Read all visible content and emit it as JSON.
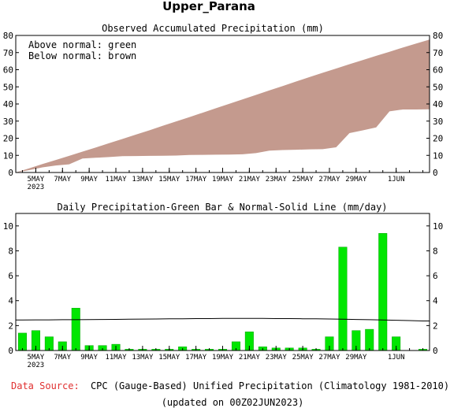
{
  "title": "Upper_Parana",
  "footer": {
    "source_label": "Data Source:",
    "source_text": "CPC (Gauge-Based) Unified Precipitation (Climatology 1981-2010)",
    "updated": "(updated on 00Z02JUN2023)"
  },
  "colors": {
    "above": "#00cc00",
    "below": "#c49a8e",
    "bar": "#00e600",
    "source_label": "#e03030"
  },
  "x_ticks": [
    {
      "day": 2,
      "label": "5MAY",
      "sub": "2023"
    },
    {
      "day": 4,
      "label": "7MAY"
    },
    {
      "day": 6,
      "label": "9MAY"
    },
    {
      "day": 8,
      "label": "11MAY"
    },
    {
      "day": 10,
      "label": "13MAY"
    },
    {
      "day": 12,
      "label": "15MAY"
    },
    {
      "day": 14,
      "label": "17MAY"
    },
    {
      "day": 16,
      "label": "19MAY"
    },
    {
      "day": 18,
      "label": "21MAY"
    },
    {
      "day": 20,
      "label": "23MAY"
    },
    {
      "day": 22,
      "label": "25MAY"
    },
    {
      "day": 24,
      "label": "27MAY"
    },
    {
      "day": 26,
      "label": "29MAY"
    },
    {
      "day": 29,
      "label": "1JUN"
    }
  ],
  "chart_data": [
    {
      "type": "area",
      "title": "Observed Accumulated Precipitation (mm)",
      "legend": [
        "Above normal: green",
        "Below normal: brown"
      ],
      "legend_position": "top-left",
      "x": [
        1,
        2,
        3,
        4,
        5,
        6,
        7,
        8,
        9,
        10,
        11,
        12,
        13,
        14,
        15,
        16,
        17,
        18,
        19,
        20,
        21,
        22,
        23,
        24,
        25,
        26,
        27,
        28,
        29,
        30,
        31
      ],
      "series": [
        {
          "name": "Observed",
          "values": [
            1.4,
            3.0,
            4.1,
            4.8,
            8.2,
            8.6,
            9.0,
            9.5,
            9.6,
            9.7,
            9.8,
            9.9,
            10.2,
            10.3,
            10.4,
            10.5,
            10.6,
            11.3,
            12.8,
            13.1,
            13.3,
            13.5,
            13.6,
            14.7,
            23.0,
            24.6,
            26.3,
            35.7,
            36.8,
            36.8,
            36.9
          ]
        },
        {
          "name": "Normal",
          "values": [
            2.4,
            4.9,
            7.3,
            9.7,
            12.2,
            14.6,
            17.1,
            19.6,
            22.1,
            24.6,
            27.2,
            29.8,
            32.3,
            34.9,
            37.5,
            40.1,
            42.7,
            45.3,
            47.9,
            50.5,
            53.1,
            55.7,
            58.2,
            60.7,
            63.2,
            65.6,
            68.1,
            70.5,
            72.9,
            75.3,
            77.6
          ]
        }
      ],
      "ylim": [
        0,
        80
      ],
      "yticks": [
        0,
        10,
        20,
        30,
        40,
        50,
        60,
        70,
        80
      ]
    },
    {
      "type": "bar",
      "title": "Daily Precipitation-Green Bar & Normal-Solid Line (mm/day)",
      "x": [
        1,
        2,
        3,
        4,
        5,
        6,
        7,
        8,
        9,
        10,
        11,
        12,
        13,
        14,
        15,
        16,
        17,
        18,
        19,
        20,
        21,
        22,
        23,
        24,
        25,
        26,
        27,
        28,
        29,
        30,
        31
      ],
      "series": [
        {
          "name": "Daily Precipitation",
          "values": [
            1.4,
            1.6,
            1.1,
            0.7,
            3.4,
            0.4,
            0.4,
            0.5,
            0.1,
            0.1,
            0.1,
            0.1,
            0.3,
            0.1,
            0.1,
            0.1,
            0.7,
            1.5,
            0.3,
            0.2,
            0.2,
            0.2,
            0.1,
            1.1,
            8.3,
            1.6,
            1.7,
            9.4,
            1.1,
            0.0,
            0.1
          ]
        },
        {
          "name": "Normal",
          "values": [
            2.45,
            2.46,
            2.46,
            2.47,
            2.47,
            2.48,
            2.49,
            2.5,
            2.51,
            2.52,
            2.53,
            2.54,
            2.55,
            2.56,
            2.56,
            2.57,
            2.57,
            2.57,
            2.57,
            2.56,
            2.56,
            2.55,
            2.54,
            2.53,
            2.51,
            2.49,
            2.47,
            2.45,
            2.43,
            2.4,
            2.37
          ]
        }
      ],
      "ylim": [
        0,
        11
      ],
      "yticks": [
        0,
        2,
        4,
        6,
        8,
        10
      ]
    }
  ]
}
